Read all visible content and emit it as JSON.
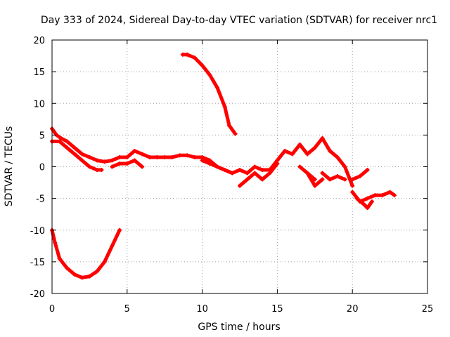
{
  "chart_data": {
    "type": "scatter",
    "title": "Day 333 of 2024, Sidereal Day-to-day VTEC variation (SDTVAR) for receiver nrc1",
    "xlabel": "GPS time / hours",
    "ylabel": "SDTVAR / TECUs",
    "xlim": [
      0,
      25
    ],
    "ylim": [
      -20,
      20
    ],
    "xticks": [
      0,
      5,
      10,
      15,
      20,
      25
    ],
    "yticks": [
      -20,
      -15,
      -10,
      -5,
      0,
      5,
      10,
      15,
      20
    ],
    "grid": true,
    "marker_color": "#ff0000",
    "series": [
      {
        "name": "main-track",
        "x": [
          0.0,
          0.3,
          0.6,
          1.0,
          1.5,
          2.0,
          2.5,
          3.0,
          3.5,
          4.0,
          4.5,
          5.0,
          5.5,
          6.0,
          6.5,
          7.0,
          7.5,
          8.0,
          8.5,
          9.0,
          9.5,
          10.0,
          10.5,
          11.0,
          11.5,
          12.0,
          12.5,
          13.0,
          13.5,
          14.0,
          14.5,
          15.0,
          15.5,
          16.0,
          16.5,
          17.0,
          17.5,
          18.0,
          18.5,
          19.0,
          19.5,
          20.0
        ],
        "y": [
          6.0,
          5.0,
          4.5,
          4.0,
          3.0,
          2.0,
          1.5,
          1.0,
          0.8,
          1.0,
          1.5,
          1.5,
          2.5,
          2.0,
          1.5,
          1.5,
          1.5,
          1.5,
          1.8,
          1.8,
          1.5,
          1.5,
          1.0,
          0.0,
          -0.5,
          -1.0,
          -0.5,
          -1.0,
          0.0,
          -0.5,
          -0.5,
          1.0,
          2.5,
          2.0,
          3.5,
          2.0,
          3.0,
          4.5,
          2.5,
          1.5,
          0.0,
          -3.0
        ]
      },
      {
        "name": "branch-a",
        "x": [
          0.0,
          0.5,
          1.0,
          1.5,
          2.0,
          2.5,
          3.0,
          3.3
        ],
        "y": [
          4.0,
          4.0,
          3.0,
          2.0,
          1.0,
          0.0,
          -0.5,
          -0.5
        ]
      },
      {
        "name": "branch-b",
        "x": [
          4.0,
          4.5,
          5.0,
          5.5,
          6.0
        ],
        "y": [
          0.0,
          0.5,
          0.5,
          1.0,
          0.0
        ]
      },
      {
        "name": "branch-c",
        "x": [
          10.0,
          10.5,
          11.0,
          11.5,
          12.0
        ],
        "y": [
          1.0,
          0.5,
          0.0,
          -0.5,
          -1.0
        ]
      },
      {
        "name": "branch-d",
        "x": [
          12.5,
          13.0,
          13.5,
          14.0,
          14.5,
          15.0
        ],
        "y": [
          -3.0,
          -2.0,
          -1.0,
          -2.0,
          -1.0,
          0.5
        ]
      },
      {
        "name": "branch-e",
        "x": [
          16.5,
          17.0,
          17.5,
          18.0
        ],
        "y": [
          0.0,
          -1.0,
          -3.0,
          -2.0
        ]
      },
      {
        "name": "branch-f",
        "x": [
          17.0,
          17.5
        ],
        "y": [
          -1.0,
          -2.0
        ]
      },
      {
        "name": "branch-g",
        "x": [
          18.0,
          18.5,
          19.0,
          19.5
        ],
        "y": [
          -1.0,
          -2.0,
          -1.5,
          -2.0
        ]
      },
      {
        "name": "segment-late-upper",
        "x": [
          20.0,
          20.5,
          21.0
        ],
        "y": [
          -2.0,
          -1.5,
          -0.5
        ]
      },
      {
        "name": "segment-late-lower",
        "x": [
          20.0,
          20.5,
          21.0,
          21.5,
          22.0,
          22.5,
          22.8
        ],
        "y": [
          -4.0,
          -5.5,
          -5.0,
          -4.5,
          -4.5,
          -4.0,
          -4.5
        ]
      },
      {
        "name": "segment-late-dip",
        "x": [
          20.3,
          20.8,
          21.0,
          21.3
        ],
        "y": [
          -5.0,
          -6.0,
          -6.5,
          -5.5
        ]
      },
      {
        "name": "segment-top",
        "x": [
          8.7,
          9.0,
          9.5,
          10.0,
          10.5,
          11.0,
          11.5,
          11.8,
          12.2
        ],
        "y": [
          17.7,
          17.7,
          17.2,
          16.0,
          14.5,
          12.5,
          9.5,
          6.5,
          5.2
        ]
      },
      {
        "name": "segment-bottom",
        "x": [
          0.0,
          0.2,
          0.5,
          1.0,
          1.5,
          2.0,
          2.5,
          3.0,
          3.5,
          4.0,
          4.5
        ],
        "y": [
          -10.0,
          -12.0,
          -14.5,
          -16.0,
          -17.0,
          -17.5,
          -17.3,
          -16.5,
          -15.0,
          -12.5,
          -10.0
        ]
      }
    ]
  }
}
